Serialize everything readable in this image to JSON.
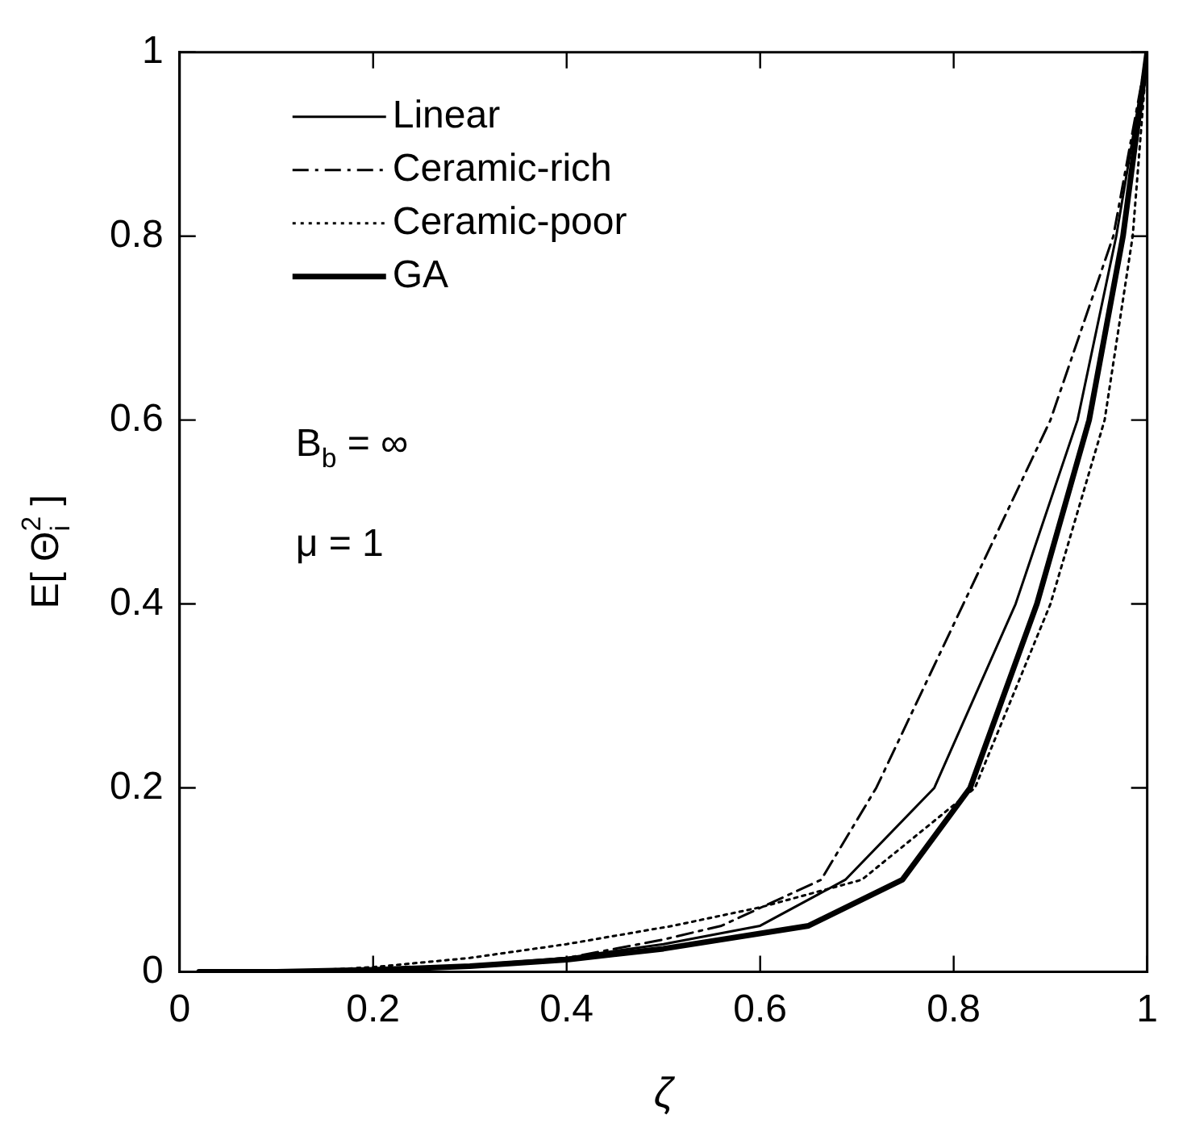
{
  "chart_data": {
    "type": "line",
    "xlabel": "ζ",
    "ylabel": "E[ Θ$_{i}$$^{2}$ ]",
    "xlim": [
      0,
      1
    ],
    "ylim": [
      0,
      1
    ],
    "xticks": [
      0,
      0.2,
      0.4,
      0.6,
      0.8,
      1
    ],
    "yticks": [
      0,
      0.2,
      0.4,
      0.6,
      0.8,
      1
    ],
    "grid": false,
    "legend": "top left",
    "marker": "none",
    "annotations": [
      "B$_{b}$ = ∞",
      "μ = 1"
    ],
    "series": [
      {
        "name": "Linear",
        "color": "#000000",
        "line_style": "solid",
        "x": [
          0,
          0.1,
          0.2,
          0.3,
          0.4,
          0.5,
          0.6,
          0.688,
          0.78,
          0.864,
          0.928,
          0.968,
          1
        ],
        "values": [
          0,
          0,
          0.002,
          0.007,
          0.015,
          0.03,
          0.05,
          0.1,
          0.2,
          0.4,
          0.6,
          0.8,
          1
        ]
      },
      {
        "name": "Ceramic-rich",
        "color": "#000000",
        "line_style": "dashed",
        "x": [
          0.05,
          0.1,
          0.2,
          0.3,
          0.4,
          0.5,
          0.56,
          0.663,
          0.72,
          0.81,
          0.9,
          0.965,
          1
        ],
        "values": [
          0,
          0,
          0.002,
          0.006,
          0.015,
          0.035,
          0.05,
          0.1,
          0.2,
          0.4,
          0.6,
          0.8,
          1
        ]
      },
      {
        "name": "Ceramic-poor",
        "color": "#000000",
        "line_style": "dotted",
        "x": [
          0.1,
          0.15,
          0.2,
          0.3,
          0.4,
          0.51,
          0.6,
          0.705,
          0.822,
          0.9,
          0.956,
          0.985,
          1
        ],
        "values": [
          0,
          0.002,
          0.005,
          0.015,
          0.03,
          0.05,
          0.07,
          0.1,
          0.2,
          0.4,
          0.6,
          0.8,
          1
        ]
      },
      {
        "name": "GA",
        "color": "#000000",
        "line_style": "solid",
        "x": [
          0.02,
          0.1,
          0.2,
          0.3,
          0.4,
          0.5,
          0.65,
          0.747,
          0.817,
          0.886,
          0.94,
          0.975,
          1
        ],
        "values": [
          0,
          0,
          0.002,
          0.006,
          0.013,
          0.025,
          0.05,
          0.1,
          0.2,
          0.4,
          0.6,
          0.8,
          1
        ]
      }
    ]
  }
}
